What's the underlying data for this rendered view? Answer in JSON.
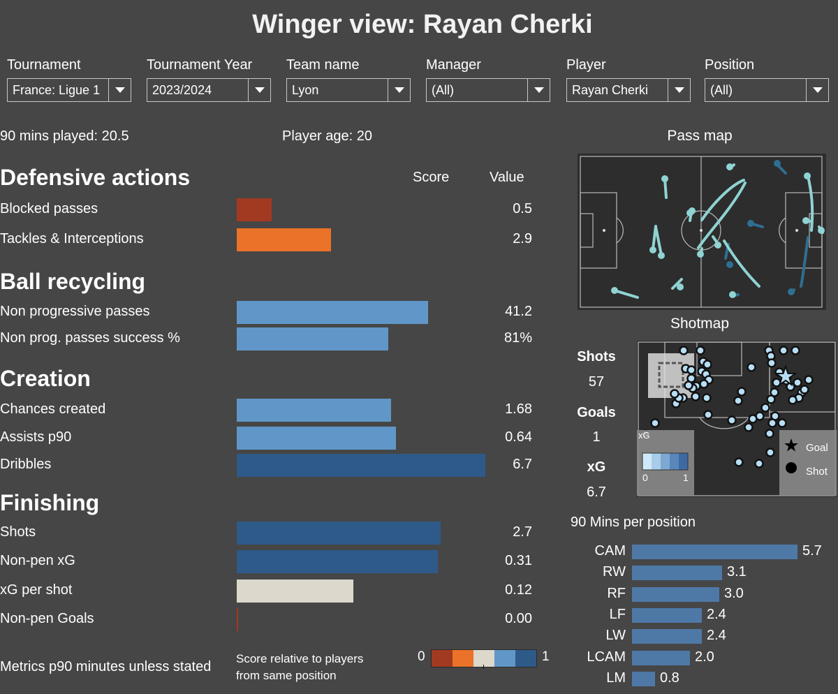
{
  "title": "Winger view: Rayan Cherki",
  "filters": [
    {
      "label": "Tournament",
      "value": "France: Ligue 1"
    },
    {
      "label": "Tournament Year",
      "value": "2023/2024"
    },
    {
      "label": "Team name",
      "value": "Lyon"
    },
    {
      "label": "Manager",
      "value": "(All)"
    },
    {
      "label": "Player",
      "value": "Rayan Cherki"
    },
    {
      "label": "Position",
      "value": "(All)"
    }
  ],
  "info": {
    "mins_played": "90 mins played: 20.5",
    "player_age": "Player age: 20"
  },
  "columns": {
    "score": "Score",
    "value": "Value"
  },
  "colors": {
    "scale": [
      "#a23a22",
      "#eb7229",
      "#dcd8cc",
      "#6097c8",
      "#2e5a8a"
    ],
    "position_bar": "#4e79a7",
    "pass_light": "#8fd3d3",
    "pass_dark": "#2f6f92",
    "shot_fill": "#b7def5"
  },
  "footnote": "Metrics p90 minutes unless stated",
  "legend": {
    "text_line1": "Score relative to players",
    "text_line2": "from same position",
    "min": "0",
    "max": "1"
  },
  "pass_map": {
    "title": "Pass map"
  },
  "shotmap": {
    "title": "Shotmap",
    "shots_label": "Shots",
    "shots": "57",
    "goals_label": "Goals",
    "goals": "1",
    "xg_label": "xG",
    "xg": "6.7",
    "xg_legend_label": "xG",
    "xg_min": "0",
    "xg_max": "1",
    "goal_legend": "Goal",
    "shot_legend": "Shot"
  },
  "chart_data": [
    {
      "type": "bar",
      "name_key": "metrics",
      "sections": [
        {
          "title": "Defensive actions",
          "metrics": [
            {
              "label": "Blocked passes",
              "value": "0.5",
              "score": 0.14,
              "color": "#a23a22"
            },
            {
              "label": "Tackles & Interceptions",
              "value": "2.9",
              "score": 0.38,
              "color": "#eb7229"
            }
          ]
        },
        {
          "title": "Ball recycling",
          "metrics": [
            {
              "label": "Non progressive passes",
              "value": "41.2",
              "score": 0.77,
              "color": "#6097c8"
            },
            {
              "label": "Non prog. passes success %",
              "value": "81%",
              "score": 0.61,
              "color": "#6097c8"
            }
          ]
        },
        {
          "title": "Creation",
          "metrics": [
            {
              "label": "Chances created",
              "value": "1.68",
              "score": 0.62,
              "color": "#6097c8"
            },
            {
              "label": "Assists p90",
              "value": "0.64",
              "score": 0.64,
              "color": "#6097c8"
            },
            {
              "label": "Dribbles",
              "value": "6.7",
              "score": 1.0,
              "color": "#2e5a8a"
            }
          ]
        },
        {
          "title": "Finishing",
          "metrics": [
            {
              "label": "Shots",
              "value": "2.7",
              "score": 0.82,
              "color": "#2e5a8a"
            },
            {
              "label": "Non-pen xG",
              "value": "0.31",
              "score": 0.81,
              "color": "#2e5a8a"
            },
            {
              "label": "xG per shot",
              "value": "0.12",
              "score": 0.47,
              "color": "#dcd8cc"
            },
            {
              "label": "Non-pen Goals",
              "value": "0.00",
              "score": 0.005,
              "color": "#a23a22"
            }
          ]
        }
      ]
    },
    {
      "type": "bar",
      "title": "90 Mins per position",
      "categories": [
        "CAM",
        "RW",
        "RF",
        "LF",
        "LW",
        "LCAM",
        "LM"
      ],
      "values": [
        5.7,
        3.1,
        3.0,
        2.4,
        2.4,
        2.0,
        0.8
      ]
    }
  ]
}
